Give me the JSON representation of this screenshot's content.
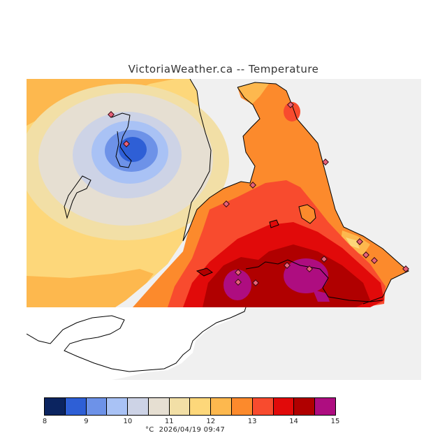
{
  "title": "VictoriaWeather.ca -- Temperature",
  "footer": {
    "unit": "°C",
    "timestamp": "2026/04/19 09:47"
  },
  "legend": {
    "bins": [
      {
        "from": 8.0,
        "to": 8.5,
        "color": "#0b2460"
      },
      {
        "from": 8.5,
        "to": 9.0,
        "color": "#2e5fd6"
      },
      {
        "from": 9.0,
        "to": 9.5,
        "color": "#6d92e8"
      },
      {
        "from": 9.5,
        "to": 10.0,
        "color": "#a9c2f5"
      },
      {
        "from": 10.0,
        "to": 10.5,
        "color": "#cdd3e6"
      },
      {
        "from": 10.5,
        "to": 11.0,
        "color": "#e6dfd2"
      },
      {
        "from": 11.0,
        "to": 11.5,
        "color": "#f2dfa6"
      },
      {
        "from": 11.5,
        "to": 12.0,
        "color": "#fdd77a"
      },
      {
        "from": 12.0,
        "to": 12.5,
        "color": "#fdb84e"
      },
      {
        "from": 12.5,
        "to": 13.0,
        "color": "#fc8a2c"
      },
      {
        "from": 13.0,
        "to": 13.5,
        "color": "#f84b2e"
      },
      {
        "from": 13.5,
        "to": 14.0,
        "color": "#e10a0a"
      },
      {
        "from": 14.0,
        "to": 14.5,
        "color": "#b00000"
      },
      {
        "from": 14.5,
        "to": 15.0,
        "color": "#ae0d80"
      }
    ],
    "tick_labels": [
      "8",
      "9",
      "10",
      "11",
      "12",
      "13",
      "14",
      "15"
    ]
  },
  "colors": {
    "water": "#f0f0f0",
    "no_data_land": "#ffffff",
    "coastline": "#000000",
    "station_marker": "#e8627a"
  },
  "stations_count": 16
}
